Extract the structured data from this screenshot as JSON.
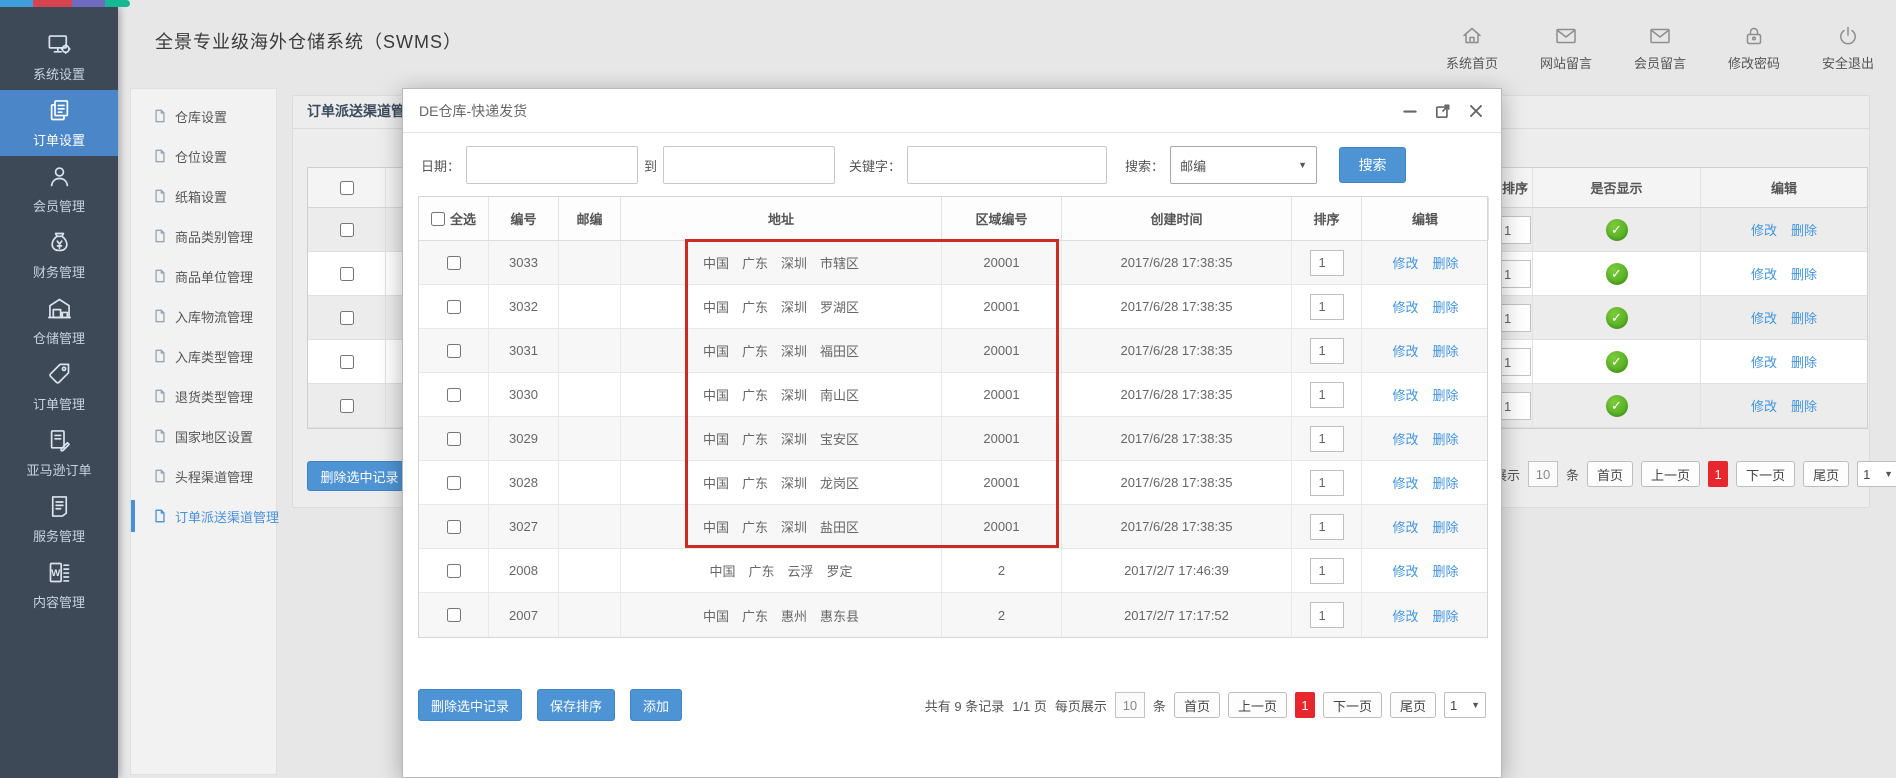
{
  "strip_colors": [
    "#3f9fdc",
    "#d6454f",
    "#6f6bc0",
    "#17b894"
  ],
  "app": {
    "title": "全景专业级海外仓储系统（SWMS）"
  },
  "header": {
    "nav": [
      {
        "label": "系统首页",
        "icon": "home-icon"
      },
      {
        "label": "网站留言",
        "icon": "mail-icon"
      },
      {
        "label": "会员留言",
        "icon": "mail-icon"
      },
      {
        "label": "修改密码",
        "icon": "lock-icon"
      },
      {
        "label": "安全退出",
        "icon": "power-icon"
      }
    ]
  },
  "sidebar": {
    "items": [
      {
        "label": "系统设置",
        "icon": "system-settings-icon",
        "active": false
      },
      {
        "label": "订单设置",
        "icon": "order-settings-icon",
        "active": true
      },
      {
        "label": "会员管理",
        "icon": "member-icon",
        "active": false
      },
      {
        "label": "财务管理",
        "icon": "finance-icon",
        "active": false
      },
      {
        "label": "仓储管理",
        "icon": "warehouse-icon",
        "active": false
      },
      {
        "label": "订单管理",
        "icon": "order-tag-icon",
        "active": false
      },
      {
        "label": "亚马逊订单",
        "icon": "amazon-order-icon",
        "active": false
      },
      {
        "label": "服务管理",
        "icon": "service-icon",
        "active": false
      },
      {
        "label": "内容管理",
        "icon": "content-icon",
        "active": false
      }
    ]
  },
  "submenu": {
    "items": [
      {
        "label": "仓库设置",
        "active": false
      },
      {
        "label": "仓位设置",
        "active": false
      },
      {
        "label": "纸箱设置",
        "active": false
      },
      {
        "label": "商品类别管理",
        "active": false
      },
      {
        "label": "商品单位管理",
        "active": false
      },
      {
        "label": "入库物流管理",
        "active": false
      },
      {
        "label": "入库类型管理",
        "active": false
      },
      {
        "label": "退货类型管理",
        "active": false
      },
      {
        "label": "国家地区设置",
        "active": false
      },
      {
        "label": "头程渠道管理",
        "active": false
      },
      {
        "label": "订单派送渠道管理",
        "active": true
      }
    ]
  },
  "main_panel": {
    "title": "订单派送渠道管理",
    "bg_table": {
      "headers": {
        "sort": "排序",
        "visible": "是否显示",
        "edit": "编辑"
      },
      "rows": [
        {
          "sort": "1"
        },
        {
          "sort": "1"
        },
        {
          "sort": "1"
        },
        {
          "sort": "1"
        },
        {
          "sort": "1"
        }
      ]
    },
    "delete_selected_label": "删除选中记录",
    "pagination": {
      "per_page_label": "每页展示",
      "per_page": "10",
      "unit": "条",
      "first": "首页",
      "prev": "上一页",
      "current": "1",
      "next": "下一页",
      "last": "尾页",
      "page_select": "1"
    }
  },
  "actions": {
    "modify": "修改",
    "delete": "删除"
  },
  "modal": {
    "title": "DE仓库-快递发货",
    "search": {
      "date_label": "日期：",
      "to_label": "到",
      "keyword_label": "关键字：",
      "search_by_label": "搜索：",
      "search_by_value": "邮编",
      "submit": "搜索"
    },
    "table": {
      "headers": {
        "select_all": "全选",
        "id": "编号",
        "zip": "邮编",
        "address": "地址",
        "region": "区域编号",
        "created": "创建时间",
        "sort": "排序",
        "edit": "编辑"
      },
      "rows": [
        {
          "id": "3033",
          "zip": "",
          "address": "中国　广东　深圳　市辖区",
          "region": "20001",
          "created": "2017/6/28 17:38:35",
          "sort": "1"
        },
        {
          "id": "3032",
          "zip": "",
          "address": "中国　广东　深圳　罗湖区",
          "region": "20001",
          "created": "2017/6/28 17:38:35",
          "sort": "1"
        },
        {
          "id": "3031",
          "zip": "",
          "address": "中国　广东　深圳　福田区",
          "region": "20001",
          "created": "2017/6/28 17:38:35",
          "sort": "1"
        },
        {
          "id": "3030",
          "zip": "",
          "address": "中国　广东　深圳　南山区",
          "region": "20001",
          "created": "2017/6/28 17:38:35",
          "sort": "1"
        },
        {
          "id": "3029",
          "zip": "",
          "address": "中国　广东　深圳　宝安区",
          "region": "20001",
          "created": "2017/6/28 17:38:35",
          "sort": "1"
        },
        {
          "id": "3028",
          "zip": "",
          "address": "中国　广东　深圳　龙岗区",
          "region": "20001",
          "created": "2017/6/28 17:38:35",
          "sort": "1"
        },
        {
          "id": "3027",
          "zip": "",
          "address": "中国　广东　深圳　盐田区",
          "region": "20001",
          "created": "2017/6/28 17:38:35",
          "sort": "1"
        },
        {
          "id": "2008",
          "zip": "",
          "address": "中国　广东　云浮　罗定",
          "region": "2",
          "created": "2017/2/7 17:46:39",
          "sort": "1"
        },
        {
          "id": "2007",
          "zip": "",
          "address": "中国　广东　惠州　惠东县",
          "region": "2",
          "created": "2017/2/7 17:17:52",
          "sort": "1"
        }
      ]
    },
    "footer": {
      "delete_selected": "删除选中记录",
      "save_sort": "保存排序",
      "add": "添加",
      "total_text": "共有 9 条记录",
      "page_text": "1/1 页",
      "per_page_label": "每页展示",
      "per_page": "10",
      "unit": "条",
      "first": "首页",
      "prev": "上一页",
      "current": "1",
      "next": "下一页",
      "last": "尾页",
      "page_select": "1"
    }
  }
}
